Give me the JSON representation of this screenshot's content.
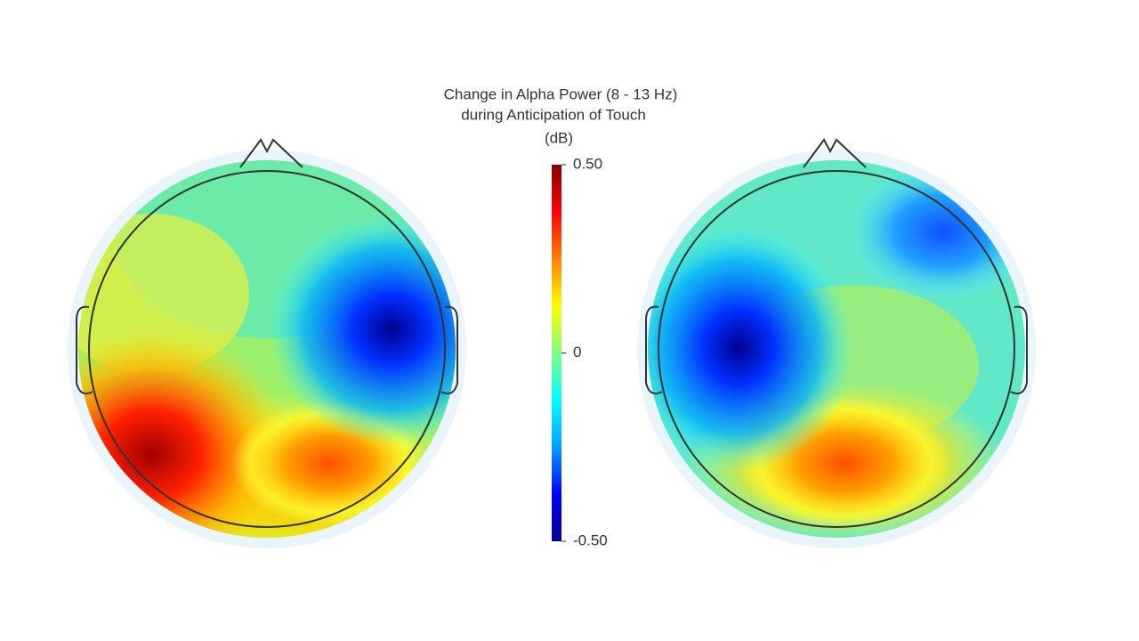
{
  "chart_data": {
    "type": "topomap",
    "title_lines": [
      "Change in Alpha Power (8 - 13 Hz)",
      "during Anticipation of Touch"
    ],
    "unit": "(dB)",
    "clim": [
      -0.5,
      0.5
    ],
    "cticks": [
      {
        "value": 0.5,
        "label": "0.50"
      },
      0,
      {
        "value": -0.5,
        "label": "-0.50"
      }
    ],
    "colormap": [
      "#00008f",
      "#0000ff",
      "#00a0ff",
      "#00ffff",
      "#80ff80",
      "#ffff00",
      "#ff8000",
      "#ff0000",
      "#800000"
    ]
  }
}
